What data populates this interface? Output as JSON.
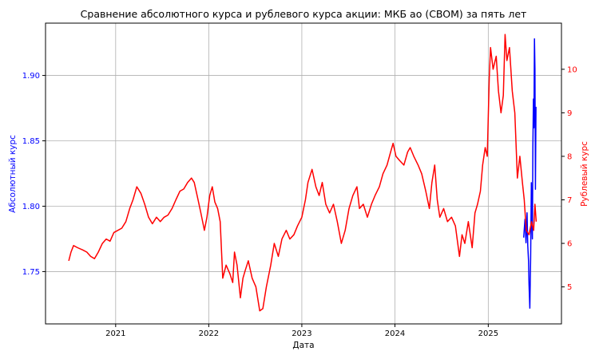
{
  "chart_data": {
    "type": "line",
    "title": "Сравнение абсолютного курса и рублевого курса акции: МКБ ао (CBOM) за пять лет",
    "xlabel": "Дата",
    "ylabel_left": "Абсолютный курс",
    "ylabel_right": "Рублевый курс",
    "left_axis_color": "#0000ff",
    "right_axis_color": "#ff0000",
    "xlim": [
      "2020-04-01",
      "2025-10-15"
    ],
    "x_ticks": [
      "2021",
      "2022",
      "2023",
      "2024",
      "2025"
    ],
    "ylim_left": [
      1.71,
      1.94
    ],
    "y_ticks_left": [
      "1.75",
      "1.80",
      "1.85",
      "1.90"
    ],
    "ylim_right": [
      4.15,
      11.06
    ],
    "y_ticks_right": [
      "5",
      "6",
      "7",
      "8",
      "9",
      "10"
    ],
    "grid": true,
    "series": [
      {
        "axis": "left",
        "color": "#0000ff",
        "points": [
          [
            "2025-05-20",
            1.776
          ],
          [
            "2025-05-25",
            1.79
          ],
          [
            "2025-05-29",
            1.772
          ],
          [
            "2025-06-02",
            1.795
          ],
          [
            "2025-06-05",
            1.77
          ],
          [
            "2025-06-08",
            1.758
          ],
          [
            "2025-06-10",
            1.74
          ],
          [
            "2025-06-13",
            1.722
          ],
          [
            "2025-06-16",
            1.76
          ],
          [
            "2025-06-19",
            1.818
          ],
          [
            "2025-06-21",
            1.79
          ],
          [
            "2025-06-23",
            1.775
          ],
          [
            "2025-06-25",
            1.845
          ],
          [
            "2025-06-27",
            1.882
          ],
          [
            "2025-06-29",
            1.86
          ],
          [
            "2025-07-01",
            1.928
          ],
          [
            "2025-07-03",
            1.905
          ],
          [
            "2025-07-05",
            1.813
          ],
          [
            "2025-07-07",
            1.876
          ]
        ]
      },
      {
        "axis": "right",
        "color": "#ff0000",
        "points": [
          [
            "2020-07-01",
            5.6
          ],
          [
            "2020-07-10",
            5.8
          ],
          [
            "2020-07-20",
            5.95
          ],
          [
            "2020-08-05",
            5.9
          ],
          [
            "2020-08-25",
            5.85
          ],
          [
            "2020-09-10",
            5.8
          ],
          [
            "2020-09-25",
            5.7
          ],
          [
            "2020-10-10",
            5.65
          ],
          [
            "2020-10-25",
            5.8
          ],
          [
            "2020-11-10",
            6.0
          ],
          [
            "2020-11-25",
            6.1
          ],
          [
            "2020-12-10",
            6.05
          ],
          [
            "2020-12-25",
            6.25
          ],
          [
            "2021-01-10",
            6.3
          ],
          [
            "2021-01-25",
            6.35
          ],
          [
            "2021-02-10",
            6.5
          ],
          [
            "2021-02-25",
            6.8
          ],
          [
            "2021-03-10",
            7.0
          ],
          [
            "2021-03-25",
            7.3
          ],
          [
            "2021-04-10",
            7.15
          ],
          [
            "2021-04-25",
            6.9
          ],
          [
            "2021-05-10",
            6.6
          ],
          [
            "2021-05-25",
            6.45
          ],
          [
            "2021-06-10",
            6.6
          ],
          [
            "2021-06-25",
            6.5
          ],
          [
            "2021-07-10",
            6.6
          ],
          [
            "2021-07-25",
            6.65
          ],
          [
            "2021-08-10",
            6.8
          ],
          [
            "2021-08-25",
            7.0
          ],
          [
            "2021-09-10",
            7.2
          ],
          [
            "2021-09-25",
            7.25
          ],
          [
            "2021-10-10",
            7.4
          ],
          [
            "2021-10-25",
            7.5
          ],
          [
            "2021-11-05",
            7.4
          ],
          [
            "2021-11-20",
            7.0
          ],
          [
            "2021-12-01",
            6.7
          ],
          [
            "2021-12-15",
            6.3
          ],
          [
            "2021-12-25",
            6.6
          ],
          [
            "2022-01-05",
            7.1
          ],
          [
            "2022-01-15",
            7.3
          ],
          [
            "2022-01-25",
            6.95
          ],
          [
            "2022-02-05",
            6.8
          ],
          [
            "2022-02-15",
            6.5
          ],
          [
            "2022-02-25",
            5.2
          ],
          [
            "2022-03-10",
            5.5
          ],
          [
            "2022-03-25",
            5.3
          ],
          [
            "2022-04-05",
            5.1
          ],
          [
            "2022-04-12",
            5.8
          ],
          [
            "2022-04-22",
            5.5
          ],
          [
            "2022-05-05",
            4.75
          ],
          [
            "2022-05-15",
            5.2
          ],
          [
            "2022-05-25",
            5.4
          ],
          [
            "2022-06-05",
            5.6
          ],
          [
            "2022-06-20",
            5.2
          ],
          [
            "2022-07-05",
            5.0
          ],
          [
            "2022-07-20",
            4.45
          ],
          [
            "2022-08-01",
            4.5
          ],
          [
            "2022-08-15",
            5.0
          ],
          [
            "2022-09-01",
            5.5
          ],
          [
            "2022-09-15",
            6.0
          ],
          [
            "2022-10-01",
            5.7
          ],
          [
            "2022-10-15",
            6.1
          ],
          [
            "2022-11-01",
            6.3
          ],
          [
            "2022-11-15",
            6.1
          ],
          [
            "2022-12-01",
            6.2
          ],
          [
            "2022-12-15",
            6.4
          ],
          [
            "2023-01-01",
            6.6
          ],
          [
            "2023-01-15",
            7.0
          ],
          [
            "2023-01-25",
            7.4
          ],
          [
            "2023-02-10",
            7.7
          ],
          [
            "2023-02-25",
            7.3
          ],
          [
            "2023-03-10",
            7.1
          ],
          [
            "2023-03-22",
            7.4
          ],
          [
            "2023-04-05",
            6.9
          ],
          [
            "2023-04-20",
            6.7
          ],
          [
            "2023-05-05",
            6.9
          ],
          [
            "2023-05-20",
            6.5
          ],
          [
            "2023-06-05",
            6.0
          ],
          [
            "2023-06-20",
            6.3
          ],
          [
            "2023-07-05",
            6.8
          ],
          [
            "2023-07-20",
            7.1
          ],
          [
            "2023-08-05",
            7.3
          ],
          [
            "2023-08-15",
            6.8
          ],
          [
            "2023-08-30",
            6.9
          ],
          [
            "2023-09-15",
            6.6
          ],
          [
            "2023-10-01",
            6.9
          ],
          [
            "2023-10-15",
            7.1
          ],
          [
            "2023-11-01",
            7.3
          ],
          [
            "2023-11-15",
            7.6
          ],
          [
            "2023-12-01",
            7.8
          ],
          [
            "2023-12-15",
            8.1
          ],
          [
            "2023-12-25",
            8.3
          ],
          [
            "2024-01-05",
            8.0
          ],
          [
            "2024-01-20",
            7.9
          ],
          [
            "2024-02-05",
            7.8
          ],
          [
            "2024-02-20",
            8.1
          ],
          [
            "2024-03-01",
            8.2
          ],
          [
            "2024-03-15",
            8.0
          ],
          [
            "2024-04-01",
            7.8
          ],
          [
            "2024-04-15",
            7.6
          ],
          [
            "2024-05-01",
            7.2
          ],
          [
            "2024-05-15",
            6.8
          ],
          [
            "2024-05-25",
            7.4
          ],
          [
            "2024-06-05",
            7.8
          ],
          [
            "2024-06-15",
            7.0
          ],
          [
            "2024-06-25",
            6.6
          ],
          [
            "2024-07-10",
            6.8
          ],
          [
            "2024-07-25",
            6.5
          ],
          [
            "2024-08-10",
            6.6
          ],
          [
            "2024-08-25",
            6.4
          ],
          [
            "2024-09-10",
            5.7
          ],
          [
            "2024-09-20",
            6.2
          ],
          [
            "2024-10-01",
            6.0
          ],
          [
            "2024-10-15",
            6.5
          ],
          [
            "2024-10-30",
            5.9
          ],
          [
            "2024-11-10",
            6.7
          ],
          [
            "2024-11-20",
            6.9
          ],
          [
            "2024-12-01",
            7.2
          ],
          [
            "2024-12-10",
            7.8
          ],
          [
            "2024-12-20",
            8.2
          ],
          [
            "2024-12-28",
            8.0
          ],
          [
            "2025-01-05",
            9.8
          ],
          [
            "2025-01-10",
            10.5
          ],
          [
            "2025-01-20",
            10.0
          ],
          [
            "2025-02-01",
            10.3
          ],
          [
            "2025-02-10",
            9.5
          ],
          [
            "2025-02-20",
            9.0
          ],
          [
            "2025-03-01",
            9.4
          ],
          [
            "2025-03-08",
            10.8
          ],
          [
            "2025-03-15",
            10.2
          ],
          [
            "2025-03-25",
            10.5
          ],
          [
            "2025-04-05",
            9.5
          ],
          [
            "2025-04-15",
            9.0
          ],
          [
            "2025-04-25",
            7.5
          ],
          [
            "2025-05-05",
            8.0
          ],
          [
            "2025-05-15",
            7.4
          ],
          [
            "2025-05-22",
            7.0
          ],
          [
            "2025-05-30",
            6.3
          ],
          [
            "2025-06-10",
            6.2
          ],
          [
            "2025-06-20",
            6.5
          ],
          [
            "2025-06-28",
            6.3
          ],
          [
            "2025-07-03",
            6.9
          ],
          [
            "2025-07-08",
            6.5
          ]
        ]
      }
    ]
  }
}
